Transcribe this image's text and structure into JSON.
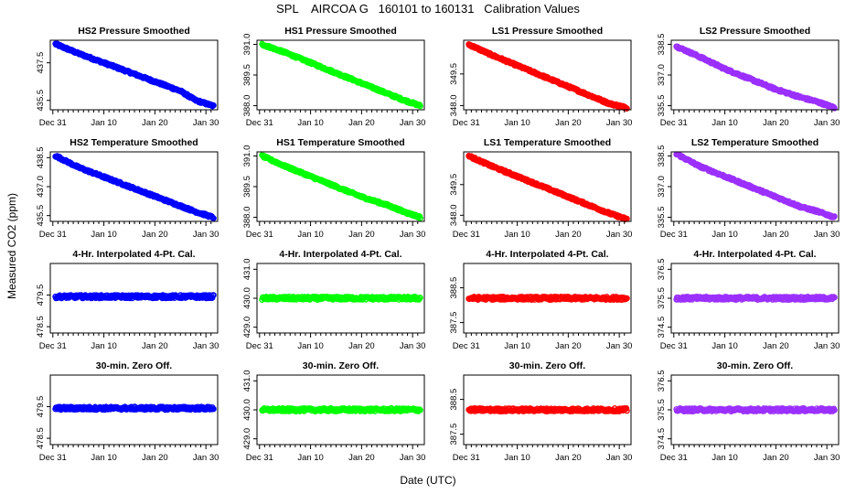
{
  "figure": {
    "title": "SPL    AIRCOA G   160101 to 160131   Calibration Values",
    "ylabel": "Measured CO2 (ppm)",
    "xlabel": "Date (UTC)"
  },
  "chart_data": [
    {
      "type": "scatter",
      "title": "HS2 Pressure Smoothed",
      "color": "#0000ff",
      "ylim": [
        435.0,
        438.7
      ],
      "yticks": [
        "435.5",
        "437.5"
      ],
      "ytick_values": [
        435.5,
        437.5
      ],
      "x_ticks": [
        "Dec 31",
        "Jan 10",
        "Jan 20",
        "Jan 30"
      ],
      "x_tick_days": [
        0,
        10,
        20,
        30
      ],
      "xlim": [
        -0.5,
        32.3
      ],
      "series": [
        {
          "x": [
            0.5,
            5,
            10,
            15,
            20,
            25,
            28,
            31.5
          ],
          "y": [
            438.5,
            438.0,
            437.5,
            437.0,
            436.5,
            436.0,
            435.5,
            435.2
          ]
        }
      ]
    },
    {
      "type": "scatter",
      "title": "HS1 Pressure Smoothed",
      "color": "#00ff00",
      "ylim": [
        387.8,
        391.2
      ],
      "yticks": [
        "388.0",
        "389.5",
        "391.0"
      ],
      "ytick_values": [
        388.0,
        389.5,
        391.0
      ],
      "x_ticks": [
        "Dec 31",
        "Jan 10",
        "Jan 20",
        "Jan 30"
      ],
      "x_tick_days": [
        0,
        10,
        20,
        30
      ],
      "xlim": [
        -0.5,
        32.3
      ],
      "series": [
        {
          "x": [
            0.5,
            5,
            10,
            15,
            20,
            25,
            28,
            31.5
          ],
          "y": [
            391.0,
            390.6,
            390.1,
            389.6,
            389.1,
            388.6,
            388.3,
            388.0
          ]
        }
      ]
    },
    {
      "type": "scatter",
      "title": "LS1 Pressure Smoothed",
      "color": "#ff0000",
      "ylim": [
        347.8,
        351.1
      ],
      "yticks": [
        "348.0",
        "349.5"
      ],
      "ytick_values": [
        348.0,
        349.5
      ],
      "x_ticks": [
        "Dec 31",
        "Jan 10",
        "Jan 20",
        "Jan 30"
      ],
      "x_tick_days": [
        0,
        10,
        20,
        30
      ],
      "xlim": [
        -0.5,
        32.3
      ],
      "series": [
        {
          "x": [
            0.5,
            5,
            10,
            15,
            20,
            25,
            28,
            31.5
          ],
          "y": [
            350.9,
            350.4,
            349.9,
            349.4,
            348.9,
            348.4,
            348.1,
            347.9
          ]
        }
      ]
    },
    {
      "type": "scatter",
      "title": "LS2 Pressure Smoothed",
      "color": "#9b30ff",
      "ylim": [
        335.3,
        338.7
      ],
      "yticks": [
        "335.5",
        "337.0",
        "338.5"
      ],
      "ytick_values": [
        335.5,
        337.0,
        338.5
      ],
      "x_ticks": [
        "Dec 31",
        "Jan 10",
        "Jan 20",
        "Jan 30"
      ],
      "x_tick_days": [
        0,
        10,
        20,
        30
      ],
      "xlim": [
        -0.5,
        32.3
      ],
      "series": [
        {
          "x": [
            0.5,
            5,
            10,
            15,
            20,
            25,
            28,
            31.5
          ],
          "y": [
            338.4,
            337.9,
            337.3,
            336.8,
            336.3,
            335.9,
            335.7,
            335.4
          ]
        }
      ]
    },
    {
      "type": "scatter",
      "title": "HS2 Temperature Smoothed",
      "color": "#0000ff",
      "ylim": [
        435.2,
        438.8
      ],
      "yticks": [
        "435.5",
        "437.0",
        "438.5"
      ],
      "ytick_values": [
        435.5,
        437.0,
        438.5
      ],
      "x_ticks": [
        "Dec 31",
        "Jan 10",
        "Jan 20",
        "Jan 30"
      ],
      "x_tick_days": [
        0,
        10,
        20,
        30
      ],
      "xlim": [
        -0.5,
        32.3
      ],
      "series": [
        {
          "x": [
            0.5,
            5,
            10,
            15,
            20,
            25,
            28,
            31.5
          ],
          "y": [
            438.6,
            438.0,
            437.5,
            437.0,
            436.5,
            436.0,
            435.7,
            435.4
          ]
        }
      ]
    },
    {
      "type": "scatter",
      "title": "HS1 Temperature Smoothed",
      "color": "#00ff00",
      "ylim": [
        387.8,
        391.2
      ],
      "yticks": [
        "388.0",
        "389.5",
        "391.0"
      ],
      "ytick_values": [
        388.0,
        389.5,
        391.0
      ],
      "x_ticks": [
        "Dec 31",
        "Jan 10",
        "Jan 20",
        "Jan 30"
      ],
      "x_tick_days": [
        0,
        10,
        20,
        30
      ],
      "xlim": [
        -0.5,
        32.3
      ],
      "series": [
        {
          "x": [
            0.5,
            5,
            10,
            15,
            20,
            25,
            28,
            31.5
          ],
          "y": [
            391.0,
            390.5,
            390.0,
            389.5,
            389.0,
            388.6,
            388.3,
            388.0
          ]
        }
      ]
    },
    {
      "type": "scatter",
      "title": "LS1 Temperature Smoothed",
      "color": "#ff0000",
      "ylim": [
        347.7,
        351.1
      ],
      "yticks": [
        "348.0",
        "349.5"
      ],
      "ytick_values": [
        348.0,
        349.5
      ],
      "x_ticks": [
        "Dec 31",
        "Jan 10",
        "Jan 20",
        "Jan 30"
      ],
      "x_tick_days": [
        0,
        10,
        20,
        30
      ],
      "xlim": [
        -0.5,
        32.3
      ],
      "series": [
        {
          "x": [
            0.5,
            5,
            10,
            15,
            20,
            25,
            28,
            31.5
          ],
          "y": [
            350.9,
            350.4,
            349.9,
            349.4,
            348.9,
            348.4,
            348.1,
            347.8
          ]
        }
      ]
    },
    {
      "type": "scatter",
      "title": "LS2 Temperature Smoothed",
      "color": "#9b30ff",
      "ylim": [
        335.3,
        338.7
      ],
      "yticks": [
        "335.5",
        "337.0",
        "338.5"
      ],
      "ytick_values": [
        335.5,
        337.0,
        338.5
      ],
      "x_ticks": [
        "Dec 31",
        "Jan 10",
        "Jan 20",
        "Jan 30"
      ],
      "x_tick_days": [
        0,
        10,
        20,
        30
      ],
      "xlim": [
        -0.5,
        32.3
      ],
      "series": [
        {
          "x": [
            0.5,
            5,
            10,
            15,
            20,
            25,
            28,
            31.5
          ],
          "y": [
            338.6,
            338.0,
            337.5,
            337.0,
            336.5,
            336.0,
            335.8,
            335.5
          ]
        }
      ]
    },
    {
      "type": "scatter",
      "title": "4-Hr. Interpolated 4-Pt. Cal.",
      "color": "#0000ff",
      "ylim": [
        478.3,
        480.5
      ],
      "yticks": [
        "478.5",
        "479.5"
      ],
      "ytick_values": [
        478.5,
        479.5
      ],
      "x_ticks": [
        "Dec 31",
        "Jan 10",
        "Jan 20",
        "Jan 30"
      ],
      "x_tick_days": [
        0,
        10,
        20,
        30
      ],
      "xlim": [
        -0.5,
        32.3
      ],
      "series": [
        {
          "x": [
            0.5,
            31.5
          ],
          "y": [
            479.45,
            479.45
          ]
        }
      ]
    },
    {
      "type": "scatter",
      "title": "4-Hr. Interpolated 4-Pt. Cal.",
      "color": "#00ff00",
      "ylim": [
        428.8,
        431.2
      ],
      "yticks": [
        "429.0",
        "430.0",
        "431.0"
      ],
      "ytick_values": [
        429.0,
        430.0,
        431.0
      ],
      "x_ticks": [
        "Dec 31",
        "Jan 10",
        "Jan 20",
        "Jan 30"
      ],
      "x_tick_days": [
        0,
        10,
        20,
        30
      ],
      "xlim": [
        -0.5,
        32.3
      ],
      "series": [
        {
          "x": [
            0.5,
            31.5
          ],
          "y": [
            430.0,
            430.0
          ]
        }
      ]
    },
    {
      "type": "scatter",
      "title": "4-Hr. Interpolated 4-Pt. Cal.",
      "color": "#ff0000",
      "ylim": [
        387.2,
        389.2
      ],
      "yticks": [
        "387.5",
        "388.5"
      ],
      "ytick_values": [
        387.5,
        388.5
      ],
      "x_ticks": [
        "Dec 31",
        "Jan 10",
        "Jan 20",
        "Jan 30"
      ],
      "x_tick_days": [
        0,
        10,
        20,
        30
      ],
      "xlim": [
        -0.5,
        32.3
      ],
      "series": [
        {
          "x": [
            0.5,
            31.5
          ],
          "y": [
            388.2,
            388.2
          ]
        }
      ]
    },
    {
      "type": "scatter",
      "title": "4-Hr. Interpolated 4-Pt. Cal.",
      "color": "#9b30ff",
      "ylim": [
        374.3,
        376.7
      ],
      "yticks": [
        "374.5",
        "375.5",
        "376.5"
      ],
      "ytick_values": [
        374.5,
        375.5,
        376.5
      ],
      "x_ticks": [
        "Dec 31",
        "Jan 10",
        "Jan 20",
        "Jan 30"
      ],
      "x_tick_days": [
        0,
        10,
        20,
        30
      ],
      "xlim": [
        -0.5,
        32.3
      ],
      "series": [
        {
          "x": [
            0.5,
            31.5
          ],
          "y": [
            375.5,
            375.5
          ]
        }
      ]
    },
    {
      "type": "scatter",
      "title": "30-min. Zero Off.",
      "color": "#0000ff",
      "ylim": [
        478.3,
        480.5
      ],
      "yticks": [
        "478.5",
        "479.5"
      ],
      "ytick_values": [
        478.5,
        479.5
      ],
      "x_ticks": [
        "Dec 31",
        "Jan 10",
        "Jan 20",
        "Jan 30"
      ],
      "x_tick_days": [
        0,
        10,
        20,
        30
      ],
      "xlim": [
        -0.5,
        32.3
      ],
      "series": [
        {
          "x": [
            0.5,
            31.5
          ],
          "y": [
            479.45,
            479.45
          ]
        }
      ]
    },
    {
      "type": "scatter",
      "title": "30-min. Zero Off.",
      "color": "#00ff00",
      "ylim": [
        428.8,
        431.2
      ],
      "yticks": [
        "429.0",
        "430.0",
        "431.0"
      ],
      "ytick_values": [
        429.0,
        430.0,
        431.0
      ],
      "x_ticks": [
        "Dec 31",
        "Jan 10",
        "Jan 20",
        "Jan 30"
      ],
      "x_tick_days": [
        0,
        10,
        20,
        30
      ],
      "xlim": [
        -0.5,
        32.3
      ],
      "series": [
        {
          "x": [
            0.5,
            31.5
          ],
          "y": [
            430.0,
            430.0
          ]
        }
      ]
    },
    {
      "type": "scatter",
      "title": "30-min. Zero Off.",
      "color": "#ff0000",
      "ylim": [
        387.2,
        389.2
      ],
      "yticks": [
        "387.5",
        "388.5"
      ],
      "ytick_values": [
        387.5,
        388.5
      ],
      "x_ticks": [
        "Dec 31",
        "Jan 10",
        "Jan 20",
        "Jan 30"
      ],
      "x_tick_days": [
        0,
        10,
        20,
        30
      ],
      "xlim": [
        -0.5,
        32.3
      ],
      "series": [
        {
          "x": [
            0.5,
            31.5
          ],
          "y": [
            388.2,
            388.2
          ]
        }
      ]
    },
    {
      "type": "scatter",
      "title": "30-min. Zero Off.",
      "color": "#9b30ff",
      "ylim": [
        374.3,
        376.7
      ],
      "yticks": [
        "374.5",
        "375.5",
        "376.5"
      ],
      "ytick_values": [
        374.5,
        375.5,
        376.5
      ],
      "x_ticks": [
        "Dec 31",
        "Jan 10",
        "Jan 20",
        "Jan 30"
      ],
      "x_tick_days": [
        0,
        10,
        20,
        30
      ],
      "xlim": [
        -0.5,
        32.3
      ],
      "series": [
        {
          "x": [
            0.5,
            31.5
          ],
          "y": [
            375.5,
            375.5
          ]
        }
      ]
    }
  ]
}
